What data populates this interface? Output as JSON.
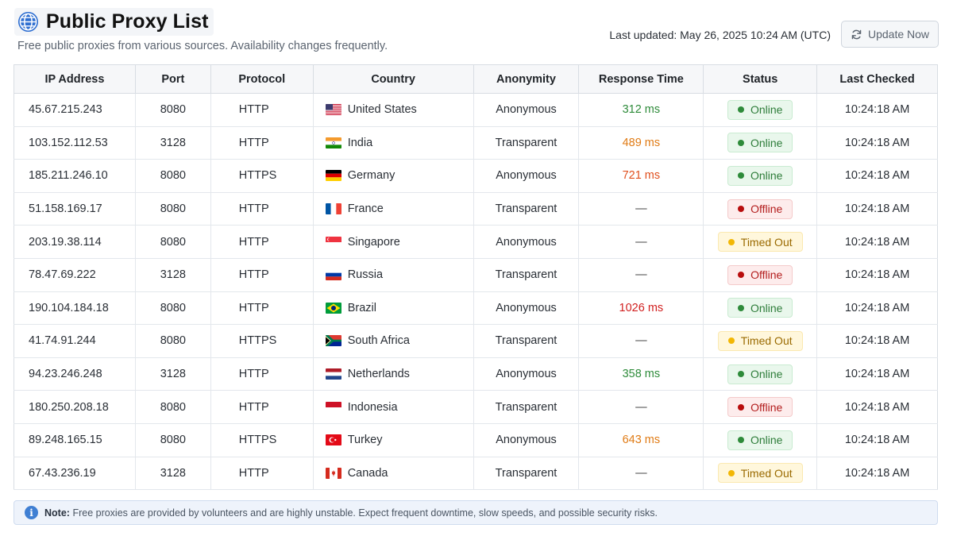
{
  "header": {
    "title": "Public Proxy List",
    "subtitle": "Free public proxies from various sources. Availability changes frequently.",
    "last_updated": "Last updated: May 26, 2025 10:24 AM (UTC)",
    "update_button": "Update Now",
    "title_icon": "globe-icon",
    "update_icon": "refresh-icon"
  },
  "columns": [
    "IP Address",
    "Port",
    "Protocol",
    "Country",
    "Anonymity",
    "Response Time",
    "Status",
    "Last Checked"
  ],
  "rows": [
    {
      "ip": "45.67.215.243",
      "port": "8080",
      "protocol": "HTTP",
      "country": "United States",
      "flag": "us",
      "anonymity": "Anonymous",
      "response": "312 ms",
      "response_color": "green",
      "status": "Online",
      "status_kind": "online",
      "checked": "10:24:18 AM"
    },
    {
      "ip": "103.152.112.53",
      "port": "3128",
      "protocol": "HTTP",
      "country": "India",
      "flag": "in",
      "anonymity": "Transparent",
      "response": "489 ms",
      "response_color": "orange",
      "status": "Online",
      "status_kind": "online",
      "checked": "10:24:18 AM"
    },
    {
      "ip": "185.211.246.10",
      "port": "8080",
      "protocol": "HTTPS",
      "country": "Germany",
      "flag": "de",
      "anonymity": "Anonymous",
      "response": "721 ms",
      "response_color": "orangered",
      "status": "Online",
      "status_kind": "online",
      "checked": "10:24:18 AM"
    },
    {
      "ip": "51.158.169.17",
      "port": "8080",
      "protocol": "HTTP",
      "country": "France",
      "flag": "fr",
      "anonymity": "Transparent",
      "response": "—",
      "response_color": "none",
      "status": "Offline",
      "status_kind": "offline",
      "checked": "10:24:18 AM"
    },
    {
      "ip": "203.19.38.114",
      "port": "8080",
      "protocol": "HTTP",
      "country": "Singapore",
      "flag": "sg",
      "anonymity": "Anonymous",
      "response": "—",
      "response_color": "none",
      "status": "Timed Out",
      "status_kind": "timedout",
      "checked": "10:24:18 AM"
    },
    {
      "ip": "78.47.69.222",
      "port": "3128",
      "protocol": "HTTP",
      "country": "Russia",
      "flag": "ru",
      "anonymity": "Transparent",
      "response": "—",
      "response_color": "none",
      "status": "Offline",
      "status_kind": "offline",
      "checked": "10:24:18 AM"
    },
    {
      "ip": "190.104.184.18",
      "port": "8080",
      "protocol": "HTTP",
      "country": "Brazil",
      "flag": "br",
      "anonymity": "Anonymous",
      "response": "1026 ms",
      "response_color": "red",
      "status": "Online",
      "status_kind": "online",
      "checked": "10:24:18 AM"
    },
    {
      "ip": "41.74.91.244",
      "port": "8080",
      "protocol": "HTTPS",
      "country": "South Africa",
      "flag": "za",
      "anonymity": "Transparent",
      "response": "—",
      "response_color": "none",
      "status": "Timed Out",
      "status_kind": "timedout",
      "checked": "10:24:18 AM"
    },
    {
      "ip": "94.23.246.248",
      "port": "3128",
      "protocol": "HTTP",
      "country": "Netherlands",
      "flag": "nl",
      "anonymity": "Anonymous",
      "response": "358 ms",
      "response_color": "green",
      "status": "Online",
      "status_kind": "online",
      "checked": "10:24:18 AM"
    },
    {
      "ip": "180.250.208.18",
      "port": "8080",
      "protocol": "HTTP",
      "country": "Indonesia",
      "flag": "id",
      "anonymity": "Transparent",
      "response": "—",
      "response_color": "none",
      "status": "Offline",
      "status_kind": "offline",
      "checked": "10:24:18 AM"
    },
    {
      "ip": "89.248.165.15",
      "port": "8080",
      "protocol": "HTTPS",
      "country": "Turkey",
      "flag": "tr",
      "anonymity": "Anonymous",
      "response": "643 ms",
      "response_color": "orange",
      "status": "Online",
      "status_kind": "online",
      "checked": "10:24:18 AM"
    },
    {
      "ip": "67.43.236.19",
      "port": "3128",
      "protocol": "HTTP",
      "country": "Canada",
      "flag": "ca",
      "anonymity": "Transparent",
      "response": "—",
      "response_color": "none",
      "status": "Timed Out",
      "status_kind": "timedout",
      "checked": "10:24:18 AM"
    }
  ],
  "note": {
    "label": "Note:",
    "text": "Free proxies are provided by volunteers and are highly unstable. Expect frequent downtime, slow speeds, and possible security risks.",
    "icon": "info-icon"
  },
  "colors": {
    "online": "#2e8b3a",
    "offline": "#b80d0d",
    "timedout": "#f2b705",
    "accent": "#3f7fd3"
  }
}
